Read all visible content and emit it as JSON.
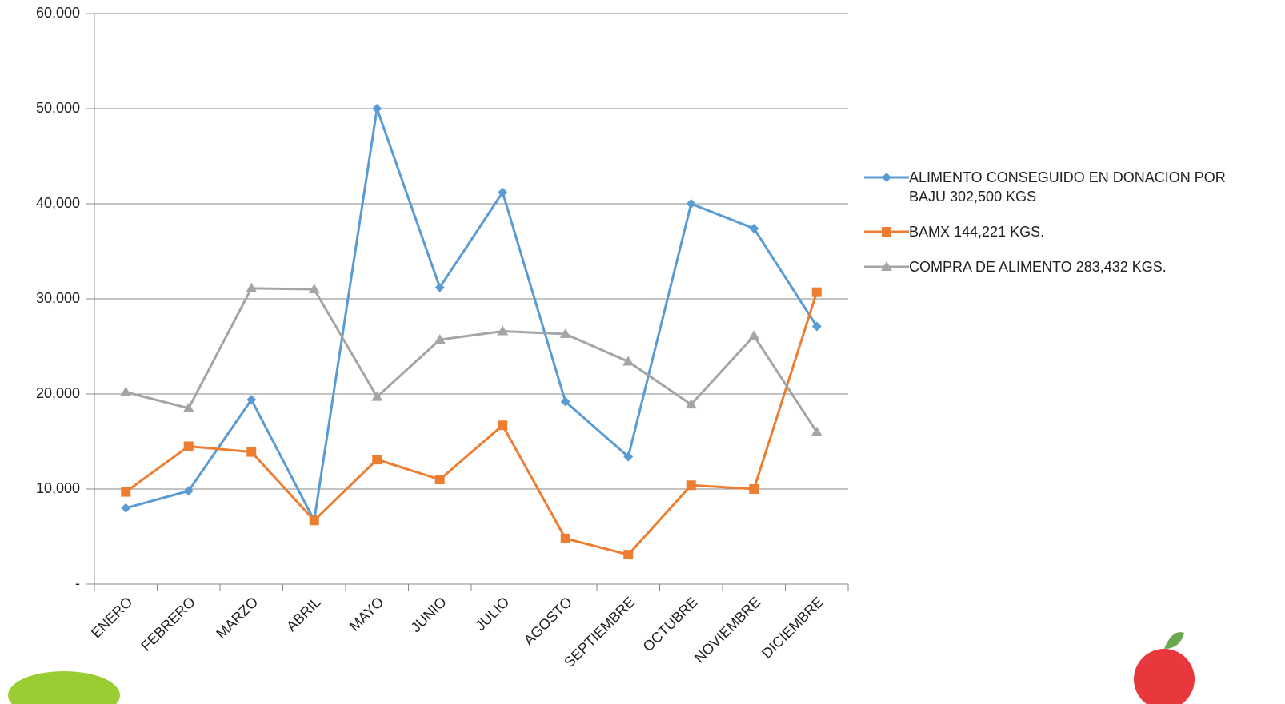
{
  "chart_data": {
    "type": "line",
    "categories": [
      "ENERO",
      "FEBRERO",
      "MARZO",
      "ABRIL",
      "MAYO",
      "JUNIO",
      "JULIO",
      "AGOSTO",
      "SEPTIEMBRE",
      "OCTUBRE",
      "NOVIEMBRE",
      "DICIEMBRE"
    ],
    "series": [
      {
        "name": "ALIMENTO CONSEGUIDO EN DONACION POR BAJU 302,500 KGS",
        "color": "#5b9bd5",
        "marker": "diamond",
        "values": [
          8000,
          9800,
          19400,
          6700,
          50000,
          31200,
          41200,
          19200,
          13400,
          40000,
          37400,
          27100
        ]
      },
      {
        "name": "BAMX 144,221 KGS.",
        "color": "#ed7d31",
        "marker": "square",
        "values": [
          9700,
          14500,
          13900,
          6700,
          13100,
          11000,
          16700,
          4800,
          3100,
          10400,
          10000,
          30700
        ]
      },
      {
        "name": "COMPRA DE ALIMENTO 283,432 KGS.",
        "color": "#a5a5a5",
        "marker": "triangle",
        "values": [
          20200,
          18500,
          31100,
          31000,
          19700,
          25700,
          26600,
          26300,
          23400,
          18900,
          26100,
          16000
        ]
      }
    ],
    "ylim": [
      0,
      60000
    ],
    "yticks": [
      {
        "value": 0,
        "label": "-"
      },
      {
        "value": 10000,
        "label": "10,000"
      },
      {
        "value": 20000,
        "label": "20,000"
      },
      {
        "value": 30000,
        "label": "30,000"
      },
      {
        "value": 40000,
        "label": "40,000"
      },
      {
        "value": 50000,
        "label": "50,000"
      },
      {
        "value": 60000,
        "label": "60,000"
      }
    ],
    "grid": true
  }
}
